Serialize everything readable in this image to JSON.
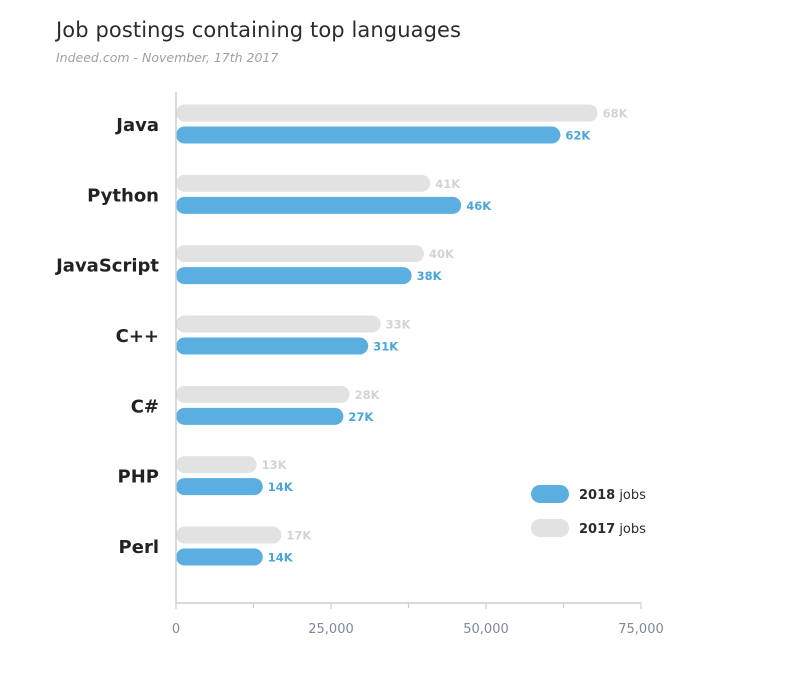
{
  "chart_data": {
    "type": "bar",
    "orientation": "horizontal",
    "title": "Job postings containing top languages",
    "subtitle": "Indeed.com - November, 17th 2017",
    "categories": [
      "Java",
      "Python",
      "JavaScript",
      "C++",
      "C#",
      "PHP",
      "Perl"
    ],
    "series": [
      {
        "name": "2017",
        "name_suffix": "jobs",
        "color": "#e2e2e2",
        "label_color": "#d3d3d3",
        "values": [
          68000,
          41000,
          40000,
          33000,
          28000,
          13000,
          17000
        ],
        "labels": [
          "68K",
          "41K",
          "40K",
          "33K",
          "28K",
          "13K",
          "17K"
        ]
      },
      {
        "name": "2018",
        "name_suffix": "jobs",
        "color": "#5aafe0",
        "label_color": "#4aa5da",
        "values": [
          62000,
          46000,
          38000,
          31000,
          27000,
          14000,
          14000
        ],
        "labels": [
          "62K",
          "46K",
          "38K",
          "31K",
          "27K",
          "14K",
          "14K"
        ]
      }
    ],
    "xlim": [
      0,
      75000
    ],
    "xticks": [
      0,
      25000,
      50000,
      75000
    ],
    "xtick_labels": [
      "0",
      "25,000",
      "50,000",
      "75,000"
    ],
    "grid": false,
    "legend_position": "bottom-right",
    "legend_order": [
      "2018",
      "2017"
    ]
  }
}
